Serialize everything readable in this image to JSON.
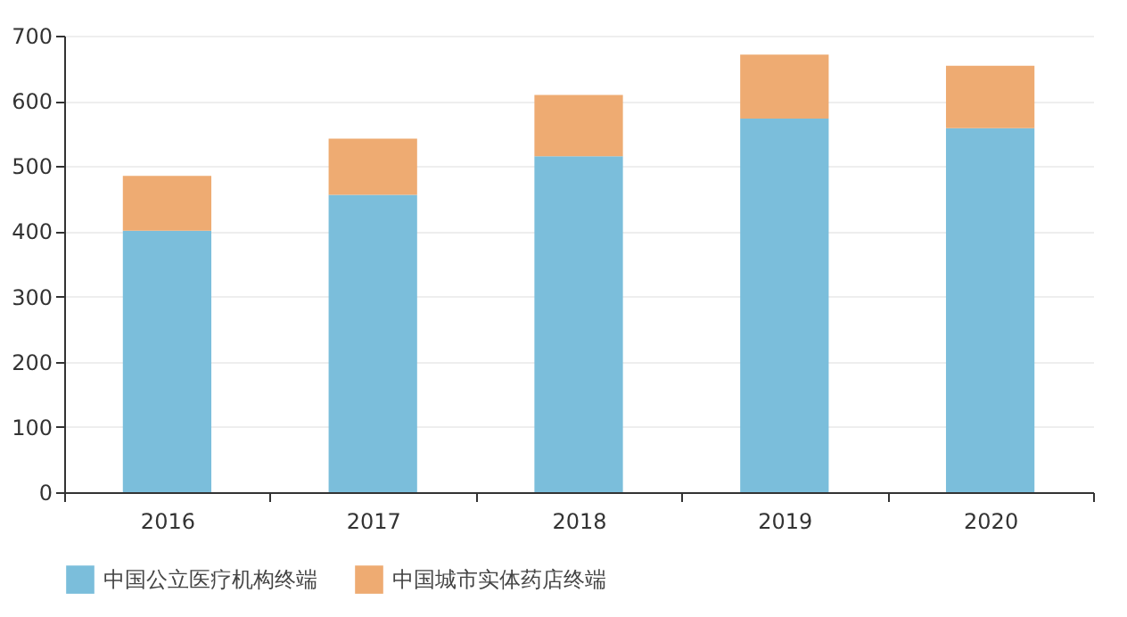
{
  "chart_data": {
    "type": "bar",
    "stacked": true,
    "categories": [
      "2016",
      "2017",
      "2018",
      "2019",
      "2020"
    ],
    "series": [
      {
        "name": "中国公立医疗机构终端",
        "color": "#7bbedb",
        "values": [
          401,
          456,
          515,
          573,
          558
        ]
      },
      {
        "name": "中国城市实体药店终端",
        "color": "#eeab72",
        "values": [
          84,
          86,
          94,
          98,
          96
        ]
      }
    ],
    "ylim": [
      0,
      700
    ],
    "yticks": [
      0,
      100,
      200,
      300,
      400,
      500,
      600,
      700
    ],
    "grid": "y",
    "legend": "bottom"
  }
}
